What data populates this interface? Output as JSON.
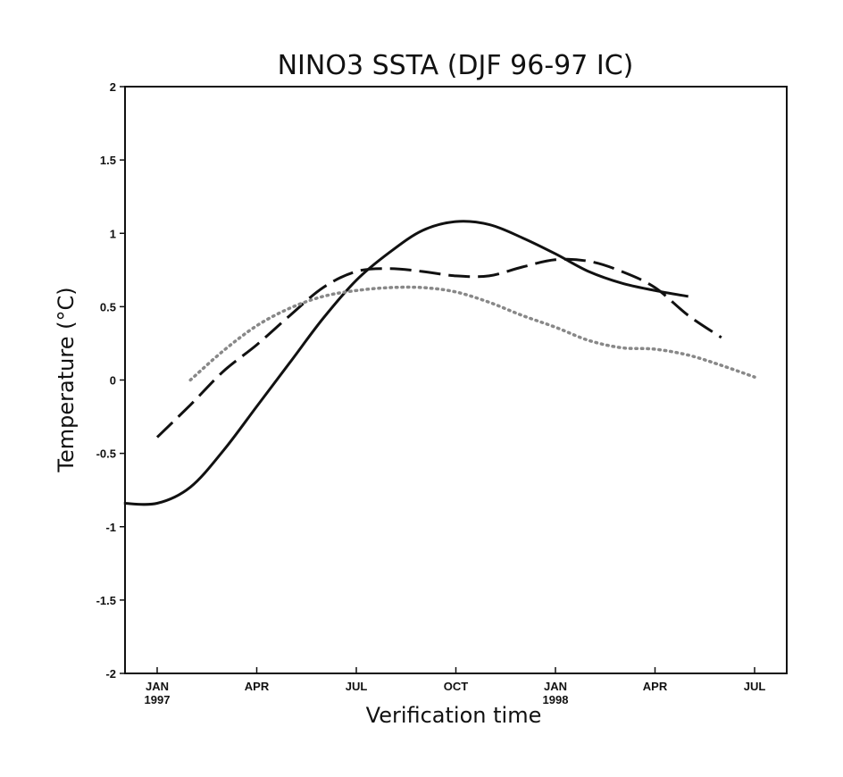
{
  "chart_data": {
    "type": "line",
    "title": "NINO3 SSTA   (DJF 96-97 IC)",
    "xlabel": "Verification time",
    "ylabel": "Temperature (°C)",
    "ylim": [
      -2,
      2
    ],
    "xlim": [
      0,
      18
    ],
    "grid": false,
    "x_ticks": [
      {
        "x": 0,
        "label": "JAN",
        "sublabel": "1997"
      },
      {
        "x": 3,
        "label": "APR",
        "sublabel": ""
      },
      {
        "x": 6,
        "label": "JUL",
        "sublabel": ""
      },
      {
        "x": 9,
        "label": "OCT",
        "sublabel": ""
      },
      {
        "x": 12,
        "label": "JAN",
        "sublabel": "1998"
      },
      {
        "x": 15,
        "label": "APR",
        "sublabel": ""
      },
      {
        "x": 18,
        "label": "JUL",
        "sublabel": ""
      }
    ],
    "y_ticks": [
      {
        "y": 2,
        "label": "2"
      },
      {
        "y": 1.5,
        "label": "1.5"
      },
      {
        "y": 1,
        "label": "1"
      },
      {
        "y": 0.5,
        "label": "0.5"
      },
      {
        "y": 0,
        "label": "0"
      },
      {
        "y": -0.5,
        "label": "-0.5"
      },
      {
        "y": -1,
        "label": "-1"
      },
      {
        "y": -1.5,
        "label": "-1.5"
      },
      {
        "y": -2,
        "label": "-2"
      }
    ],
    "series": [
      {
        "style": "solid",
        "color": "#111111",
        "x": [
          -1,
          0,
          1,
          2,
          3,
          4,
          5,
          6,
          7,
          8,
          9,
          10,
          11,
          12,
          13,
          14,
          15,
          16
        ],
        "y": [
          -0.84,
          -0.84,
          -0.73,
          -0.48,
          -0.18,
          0.12,
          0.42,
          0.68,
          0.87,
          1.02,
          1.08,
          1.06,
          0.97,
          0.86,
          0.74,
          0.66,
          0.61,
          0.57
        ]
      },
      {
        "style": "dashed",
        "color": "#111111",
        "x": [
          0,
          1,
          2,
          3,
          4,
          5,
          6,
          7,
          8,
          9,
          10,
          11,
          12,
          13,
          14,
          15,
          16,
          17
        ],
        "y": [
          -0.39,
          -0.17,
          0.06,
          0.24,
          0.44,
          0.63,
          0.74,
          0.76,
          0.74,
          0.71,
          0.71,
          0.77,
          0.82,
          0.81,
          0.74,
          0.63,
          0.44,
          0.29
        ]
      },
      {
        "style": "dotted",
        "color": "#888888",
        "x": [
          1,
          2,
          3,
          4,
          5,
          6,
          7,
          8,
          9,
          10,
          11,
          12,
          13,
          14,
          15,
          16,
          17,
          18
        ],
        "y": [
          0.0,
          0.2,
          0.37,
          0.49,
          0.57,
          0.61,
          0.63,
          0.63,
          0.6,
          0.53,
          0.44,
          0.36,
          0.27,
          0.22,
          0.21,
          0.17,
          0.1,
          0.02
        ]
      }
    ]
  }
}
